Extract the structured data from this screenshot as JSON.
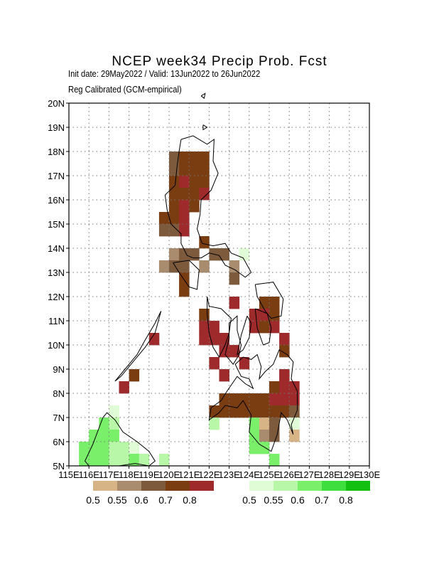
{
  "title": "NCEP week34 Precip Prob. Fcst",
  "subtitle_line1": "Init date: 29May2022 / Valid: 13Jun2022 to 26Jun2022",
  "subtitle_line2": "Reg Calibrated (GCM-empirical)",
  "map": {
    "lon_range": [
      115,
      130
    ],
    "lat_range": [
      5,
      20
    ],
    "grid": true,
    "lat_ticks": [
      "5N",
      "6N",
      "7N",
      "8N",
      "9N",
      "10N",
      "11N",
      "12N",
      "13N",
      "14N",
      "15N",
      "16N",
      "17N",
      "18N",
      "19N",
      "20N"
    ],
    "lon_ticks": [
      "115E",
      "116E",
      "117E",
      "118E",
      "119E",
      "120E",
      "121E",
      "122E",
      "123E",
      "124E",
      "125E",
      "126E",
      "127E",
      "128E",
      "129E",
      "130E"
    ],
    "cell_size_deg": 0.5,
    "cells": [
      {
        "lon": 120.25,
        "lat": 17.75,
        "c": "b6"
      },
      {
        "lon": 120.75,
        "lat": 17.75,
        "c": "b7"
      },
      {
        "lon": 121.25,
        "lat": 17.75,
        "c": "b7"
      },
      {
        "lon": 121.75,
        "lat": 17.75,
        "c": "b7"
      },
      {
        "lon": 120.25,
        "lat": 17.25,
        "c": "b6"
      },
      {
        "lon": 120.75,
        "lat": 17.25,
        "c": "b7"
      },
      {
        "lon": 121.25,
        "lat": 17.25,
        "c": "b7"
      },
      {
        "lon": 121.75,
        "lat": 17.25,
        "c": "b7"
      },
      {
        "lon": 120.25,
        "lat": 16.75,
        "c": "b7"
      },
      {
        "lon": 120.75,
        "lat": 16.75,
        "c": "b8"
      },
      {
        "lon": 121.25,
        "lat": 16.75,
        "c": "b7"
      },
      {
        "lon": 121.75,
        "lat": 16.75,
        "c": "b7"
      },
      {
        "lon": 120.25,
        "lat": 16.25,
        "c": "b7"
      },
      {
        "lon": 120.75,
        "lat": 16.25,
        "c": "b7"
      },
      {
        "lon": 121.25,
        "lat": 16.25,
        "c": "b7"
      },
      {
        "lon": 121.75,
        "lat": 16.25,
        "c": "b8"
      },
      {
        "lon": 120.25,
        "lat": 15.75,
        "c": "b7"
      },
      {
        "lon": 120.75,
        "lat": 15.75,
        "c": "b8"
      },
      {
        "lon": 121.25,
        "lat": 15.75,
        "c": "b7"
      },
      {
        "lon": 119.75,
        "lat": 15.25,
        "c": "b7"
      },
      {
        "lon": 120.25,
        "lat": 15.25,
        "c": "b7"
      },
      {
        "lon": 120.75,
        "lat": 15.25,
        "c": "b8"
      },
      {
        "lon": 119.75,
        "lat": 14.75,
        "c": "b6"
      },
      {
        "lon": 120.25,
        "lat": 14.75,
        "c": "b6"
      },
      {
        "lon": 120.75,
        "lat": 14.75,
        "c": "b8"
      },
      {
        "lon": 121.75,
        "lat": 14.25,
        "c": "b7"
      },
      {
        "lon": 120.25,
        "lat": 13.75,
        "c": "b55"
      },
      {
        "lon": 120.75,
        "lat": 13.75,
        "c": "b6"
      },
      {
        "lon": 121.25,
        "lat": 13.75,
        "c": "b6"
      },
      {
        "lon": 122.25,
        "lat": 13.75,
        "c": "b6"
      },
      {
        "lon": 122.75,
        "lat": 13.75,
        "c": "b6"
      },
      {
        "lon": 123.75,
        "lat": 13.75,
        "c": "g5"
      },
      {
        "lon": 119.75,
        "lat": 13.25,
        "c": "b55"
      },
      {
        "lon": 120.25,
        "lat": 13.25,
        "c": "b6"
      },
      {
        "lon": 120.75,
        "lat": 13.25,
        "c": "b6"
      },
      {
        "lon": 121.75,
        "lat": 13.25,
        "c": "b55"
      },
      {
        "lon": 123.25,
        "lat": 13.25,
        "c": "b55"
      },
      {
        "lon": 120.75,
        "lat": 12.75,
        "c": "b7"
      },
      {
        "lon": 123.25,
        "lat": 12.75,
        "c": "b6"
      },
      {
        "lon": 120.75,
        "lat": 12.25,
        "c": "b7"
      },
      {
        "lon": 124.75,
        "lat": 11.75,
        "c": "b7"
      },
      {
        "lon": 125.25,
        "lat": 11.75,
        "c": "b7"
      },
      {
        "lon": 123.25,
        "lat": 11.75,
        "c": "b8"
      },
      {
        "lon": 121.75,
        "lat": 11.25,
        "c": "b7"
      },
      {
        "lon": 124.25,
        "lat": 11.25,
        "c": "b8"
      },
      {
        "lon": 124.75,
        "lat": 11.25,
        "c": "b8"
      },
      {
        "lon": 125.25,
        "lat": 11.25,
        "c": "b7"
      },
      {
        "lon": 121.75,
        "lat": 10.75,
        "c": "b8"
      },
      {
        "lon": 122.25,
        "lat": 10.75,
        "c": "b8"
      },
      {
        "lon": 124.25,
        "lat": 10.75,
        "c": "b8"
      },
      {
        "lon": 124.75,
        "lat": 10.75,
        "c": "b7"
      },
      {
        "lon": 125.25,
        "lat": 10.75,
        "c": "b8"
      },
      {
        "lon": 121.75,
        "lat": 10.25,
        "c": "b8"
      },
      {
        "lon": 122.25,
        "lat": 10.25,
        "c": "b8"
      },
      {
        "lon": 122.75,
        "lat": 10.25,
        "c": "b8"
      },
      {
        "lon": 125.75,
        "lat": 10.25,
        "c": "b8"
      },
      {
        "lon": 122.75,
        "lat": 9.75,
        "c": "b8"
      },
      {
        "lon": 123.25,
        "lat": 9.75,
        "c": "b8"
      },
      {
        "lon": 125.75,
        "lat": 9.75,
        "c": "b7"
      },
      {
        "lon": 119.25,
        "lat": 10.25,
        "c": "b8"
      },
      {
        "lon": 122.25,
        "lat": 9.25,
        "c": "b8"
      },
      {
        "lon": 123.75,
        "lat": 9.25,
        "c": "b8"
      },
      {
        "lon": 118.25,
        "lat": 8.75,
        "c": "b7"
      },
      {
        "lon": 122.75,
        "lat": 8.75,
        "c": "b8"
      },
      {
        "lon": 125.75,
        "lat": 8.75,
        "c": "b8"
      },
      {
        "lon": 117.75,
        "lat": 8.25,
        "c": "b8"
      },
      {
        "lon": 125.25,
        "lat": 8.25,
        "c": "b7"
      },
      {
        "lon": 125.75,
        "lat": 8.25,
        "c": "b8"
      },
      {
        "lon": 126.25,
        "lat": 8.25,
        "c": "b8"
      },
      {
        "lon": 122.75,
        "lat": 7.75,
        "c": "b7"
      },
      {
        "lon": 123.25,
        "lat": 7.75,
        "c": "b7"
      },
      {
        "lon": 123.75,
        "lat": 7.75,
        "c": "b7"
      },
      {
        "lon": 124.25,
        "lat": 7.75,
        "c": "b7"
      },
      {
        "lon": 124.75,
        "lat": 7.75,
        "c": "b7"
      },
      {
        "lon": 125.25,
        "lat": 7.75,
        "c": "b8"
      },
      {
        "lon": 125.75,
        "lat": 7.75,
        "c": "b8"
      },
      {
        "lon": 126.25,
        "lat": 7.75,
        "c": "b8"
      },
      {
        "lon": 122.25,
        "lat": 7.25,
        "c": "b7"
      },
      {
        "lon": 122.75,
        "lat": 7.25,
        "c": "b7"
      },
      {
        "lon": 123.25,
        "lat": 7.25,
        "c": "b7"
      },
      {
        "lon": 123.75,
        "lat": 7.25,
        "c": "b7"
      },
      {
        "lon": 124.25,
        "lat": 7.25,
        "c": "b7"
      },
      {
        "lon": 124.75,
        "lat": 7.25,
        "c": "b7"
      },
      {
        "lon": 125.25,
        "lat": 7.25,
        "c": "b7"
      },
      {
        "lon": 125.75,
        "lat": 7.25,
        "c": "b7"
      },
      {
        "lon": 126.25,
        "lat": 7.25,
        "c": "b6"
      },
      {
        "lon": 122.25,
        "lat": 6.75,
        "c": "g55"
      },
      {
        "lon": 124.25,
        "lat": 6.75,
        "c": "g6"
      },
      {
        "lon": 124.75,
        "lat": 6.75,
        "c": "b5"
      },
      {
        "lon": 125.25,
        "lat": 6.75,
        "c": "b6"
      },
      {
        "lon": 126.25,
        "lat": 6.75,
        "c": "g5"
      },
      {
        "lon": 124.25,
        "lat": 6.25,
        "c": "g6"
      },
      {
        "lon": 124.75,
        "lat": 6.25,
        "c": "b55"
      },
      {
        "lon": 125.25,
        "lat": 6.25,
        "c": "b6"
      },
      {
        "lon": 126.25,
        "lat": 6.25,
        "c": "b5"
      },
      {
        "lon": 124.25,
        "lat": 5.75,
        "c": "g6"
      },
      {
        "lon": 124.75,
        "lat": 5.75,
        "c": "g6"
      },
      {
        "lon": 125.25,
        "lat": 5.25,
        "c": "g6"
      },
      {
        "lon": 117.25,
        "lat": 7.25,
        "c": "g5"
      },
      {
        "lon": 116.75,
        "lat": 6.75,
        "c": "g6"
      },
      {
        "lon": 117.25,
        "lat": 6.75,
        "c": "g55"
      },
      {
        "lon": 116.25,
        "lat": 6.25,
        "c": "g6"
      },
      {
        "lon": 116.75,
        "lat": 6.25,
        "c": "g6"
      },
      {
        "lon": 117.25,
        "lat": 6.25,
        "c": "g6"
      },
      {
        "lon": 115.75,
        "lat": 5.75,
        "c": "g6"
      },
      {
        "lon": 116.25,
        "lat": 5.75,
        "c": "g6"
      },
      {
        "lon": 116.75,
        "lat": 5.75,
        "c": "g6"
      },
      {
        "lon": 117.25,
        "lat": 5.75,
        "c": "g55"
      },
      {
        "lon": 117.75,
        "lat": 5.75,
        "c": "g55"
      },
      {
        "lon": 118.25,
        "lat": 5.75,
        "c": "g5"
      },
      {
        "lon": 115.75,
        "lat": 5.25,
        "c": "g6"
      },
      {
        "lon": 116.25,
        "lat": 5.25,
        "c": "g6"
      },
      {
        "lon": 116.75,
        "lat": 5.25,
        "c": "g6"
      },
      {
        "lon": 117.25,
        "lat": 5.25,
        "c": "g55"
      },
      {
        "lon": 117.75,
        "lat": 5.25,
        "c": "g55"
      },
      {
        "lon": 118.25,
        "lat": 5.25,
        "c": "g6"
      },
      {
        "lon": 118.75,
        "lat": 5.25,
        "c": "g55"
      },
      {
        "lon": 119.75,
        "lat": 5.25,
        "c": "g55"
      }
    ],
    "coastlines": [
      [
        [
          120.6,
          18.5
        ],
        [
          121.2,
          18.65
        ],
        [
          121.9,
          18.3
        ],
        [
          122.25,
          18.5
        ],
        [
          122.2,
          17.6
        ],
        [
          122.45,
          17.1
        ],
        [
          122.1,
          16.4
        ],
        [
          121.6,
          16.0
        ],
        [
          121.55,
          15.4
        ],
        [
          121.4,
          14.8
        ],
        [
          121.65,
          14.2
        ],
        [
          122.2,
          14.1
        ],
        [
          122.8,
          14.2
        ],
        [
          123.1,
          13.8
        ],
        [
          123.7,
          13.6
        ],
        [
          124.1,
          13.0
        ],
        [
          123.8,
          12.8
        ],
        [
          123.3,
          13.1
        ],
        [
          122.8,
          13.3
        ],
        [
          122.5,
          13.7
        ],
        [
          122.0,
          13.8
        ],
        [
          121.6,
          13.6
        ],
        [
          121.2,
          13.6
        ],
        [
          120.9,
          13.7
        ],
        [
          120.6,
          14.2
        ],
        [
          120.6,
          14.6
        ],
        [
          120.1,
          15.0
        ],
        [
          119.9,
          15.6
        ],
        [
          119.8,
          16.2
        ],
        [
          120.3,
          16.6
        ],
        [
          120.4,
          17.4
        ],
        [
          120.5,
          18.0
        ],
        [
          120.6,
          18.5
        ]
      ],
      [
        [
          120.2,
          13.4
        ],
        [
          121.0,
          13.5
        ],
        [
          121.5,
          13.1
        ],
        [
          121.4,
          12.3
        ],
        [
          121.0,
          12.4
        ],
        [
          120.5,
          13.0
        ],
        [
          120.2,
          13.4
        ]
      ],
      [
        [
          121.9,
          12.0
        ],
        [
          122.0,
          11.6
        ],
        [
          122.6,
          11.5
        ],
        [
          123.1,
          11.1
        ],
        [
          123.0,
          10.5
        ],
        [
          122.8,
          10.0
        ],
        [
          122.5,
          9.5
        ],
        [
          122.2,
          9.9
        ],
        [
          122.0,
          10.5
        ],
        [
          121.9,
          11.3
        ],
        [
          121.9,
          12.0
        ]
      ],
      [
        [
          123.0,
          10.9
        ],
        [
          123.4,
          11.2
        ],
        [
          123.4,
          10.6
        ],
        [
          123.6,
          10.0
        ],
        [
          123.5,
          9.6
        ],
        [
          123.2,
          9.2
        ],
        [
          122.8,
          9.6
        ],
        [
          123.0,
          10.3
        ],
        [
          123.0,
          10.9
        ]
      ],
      [
        [
          123.9,
          11.2
        ],
        [
          124.1,
          10.9
        ],
        [
          124.0,
          10.3
        ],
        [
          123.7,
          9.8
        ],
        [
          123.4,
          9.6
        ],
        [
          123.6,
          10.4
        ],
        [
          123.9,
          11.2
        ]
      ],
      [
        [
          124.3,
          11.5
        ],
        [
          124.9,
          11.3
        ],
        [
          125.1,
          10.7
        ],
        [
          125.0,
          10.1
        ],
        [
          124.7,
          10.0
        ],
        [
          124.4,
          10.7
        ],
        [
          124.3,
          11.5
        ]
      ],
      [
        [
          124.3,
          12.5
        ],
        [
          125.2,
          12.6
        ],
        [
          125.7,
          11.9
        ],
        [
          125.6,
          11.2
        ],
        [
          125.1,
          11.1
        ],
        [
          124.8,
          11.4
        ],
        [
          124.4,
          12.0
        ],
        [
          124.3,
          12.5
        ]
      ],
      [
        [
          119.3,
          10.5
        ],
        [
          119.6,
          11.4
        ],
        [
          119.3,
          10.9
        ],
        [
          118.8,
          10.2
        ],
        [
          118.4,
          9.6
        ],
        [
          117.8,
          9.0
        ],
        [
          117.3,
          8.5
        ],
        [
          117.6,
          8.7
        ],
        [
          118.2,
          9.3
        ],
        [
          118.8,
          9.9
        ],
        [
          119.3,
          10.5
        ]
      ],
      [
        [
          123.3,
          9.2
        ],
        [
          123.7,
          9.5
        ],
        [
          124.1,
          9.4
        ],
        [
          124.4,
          9.6
        ],
        [
          124.6,
          9.1
        ],
        [
          124.5,
          8.6
        ],
        [
          124.8,
          8.9
        ],
        [
          125.2,
          9.2
        ],
        [
          125.5,
          9.8
        ],
        [
          125.9,
          9.6
        ],
        [
          126.2,
          9.3
        ],
        [
          126.1,
          8.6
        ],
        [
          126.4,
          8.1
        ],
        [
          126.4,
          7.3
        ],
        [
          126.1,
          6.7
        ],
        [
          126.2,
          6.3
        ],
        [
          125.9,
          6.9
        ],
        [
          125.6,
          7.2
        ],
        [
          125.4,
          6.3
        ],
        [
          125.1,
          5.6
        ],
        [
          124.5,
          5.9
        ],
        [
          124.0,
          6.4
        ],
        [
          124.1,
          7.1
        ],
        [
          123.7,
          7.7
        ],
        [
          123.4,
          7.4
        ],
        [
          122.8,
          7.5
        ],
        [
          122.5,
          7.2
        ],
        [
          122.0,
          6.9
        ],
        [
          122.1,
          7.4
        ],
        [
          122.6,
          7.7
        ],
        [
          122.9,
          8.1
        ],
        [
          123.4,
          8.7
        ],
        [
          123.8,
          8.4
        ],
        [
          124.2,
          8.2
        ],
        [
          124.0,
          8.6
        ],
        [
          123.6,
          8.7
        ],
        [
          123.3,
          9.2
        ]
      ],
      [
        [
          116.7,
          7.0
        ],
        [
          116.9,
          7.2
        ],
        [
          117.3,
          6.9
        ],
        [
          117.7,
          6.4
        ],
        [
          118.4,
          6.0
        ],
        [
          119.0,
          5.6
        ],
        [
          119.3,
          5.2
        ],
        [
          119.0,
          5.0
        ],
        [
          118.3,
          5.1
        ],
        [
          117.5,
          5.0
        ],
        [
          116.6,
          5.0
        ],
        [
          116.0,
          5.0
        ],
        [
          115.8,
          5.2
        ],
        [
          116.2,
          5.9
        ],
        [
          116.7,
          7.0
        ]
      ],
      [
        [
          121.7,
          19.1
        ],
        [
          121.9,
          19.0
        ],
        [
          121.7,
          18.9
        ],
        [
          121.7,
          19.1
        ]
      ],
      [
        [
          121.6,
          20.3
        ],
        [
          121.8,
          20.4
        ],
        [
          121.75,
          20.2
        ],
        [
          121.6,
          20.3
        ]
      ]
    ]
  },
  "legend_brown": {
    "colors": [
      "#d7b485",
      "#a98c6e",
      "#7d5a3c",
      "#7a3d12",
      "#9e2a2b"
    ],
    "labels": [
      "0.5",
      "0.55",
      "0.6",
      "0.7",
      "0.8"
    ]
  },
  "legend_green": {
    "colors": [
      "#e0fcd6",
      "#b8f7a8",
      "#7af06a",
      "#3fde3f",
      "#11c011"
    ],
    "labels": [
      "0.5",
      "0.55",
      "0.6",
      "0.7",
      "0.8"
    ]
  },
  "palette": {
    "b5": "#d7b485",
    "b55": "#a98c6e",
    "b6": "#7d5a3c",
    "b7": "#7a3d12",
    "b8": "#9e2a2b",
    "g5": "#e0fcd6",
    "g55": "#b8f7a8",
    "g6": "#7af06a",
    "g7": "#3fde3f",
    "g8": "#11c011"
  }
}
